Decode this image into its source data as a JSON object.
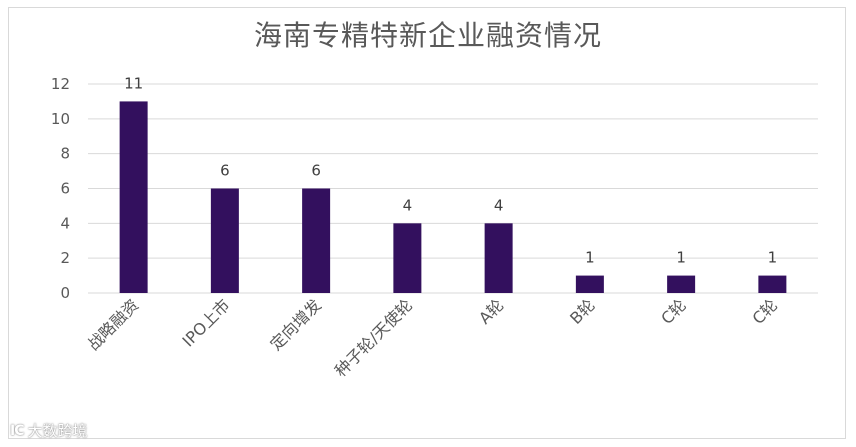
{
  "chart_data": {
    "type": "bar",
    "title": "海南专精特新企业融资情况",
    "categories": [
      "战略融资",
      "IPO上市",
      "定向增发",
      "种子轮/天使轮",
      "A轮",
      "B轮",
      "C轮",
      "C轮"
    ],
    "values": [
      11,
      6,
      6,
      4,
      4,
      1,
      1,
      1
    ],
    "yticks": [
      0,
      2,
      4,
      6,
      8,
      10,
      12
    ],
    "ylim": [
      0,
      12
    ],
    "grid": true,
    "legend": "none",
    "bar_color": "#33105e"
  },
  "watermark": {
    "logo": "ΙC",
    "text": "大数跨境"
  }
}
